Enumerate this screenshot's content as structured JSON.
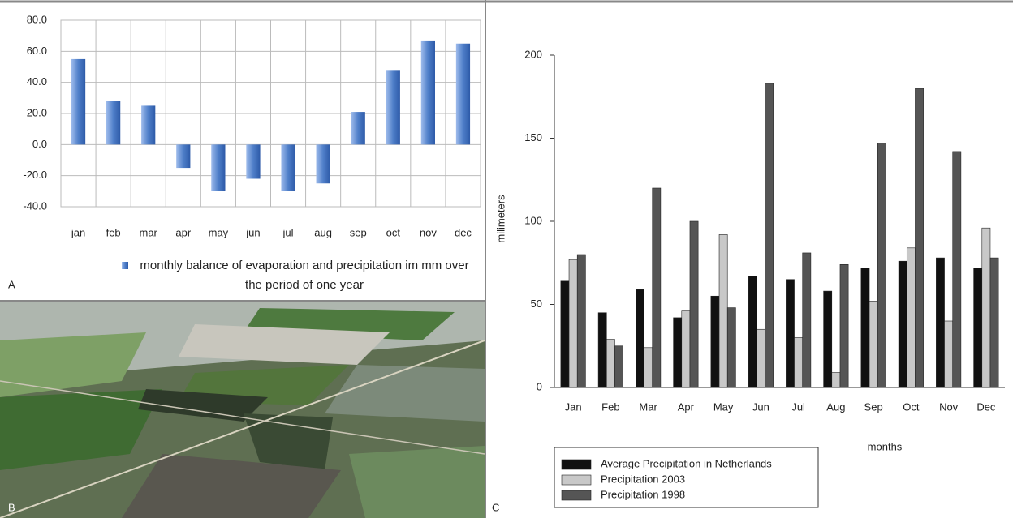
{
  "panel_labels": [
    "A",
    "B",
    "C"
  ],
  "chart_data": [
    {
      "type": "bar",
      "categories": [
        "jan",
        "feb",
        "mar",
        "apr",
        "may",
        "jun",
        "jul",
        "aug",
        "sep",
        "oct",
        "nov",
        "dec"
      ],
      "series": [
        {
          "name": "monthly balance of evaporation and precipitation im mm over the period of one year",
          "color": "#4f7fc9",
          "values": [
            55,
            28,
            25,
            -15,
            -30,
            -22,
            -30,
            -25,
            21,
            48,
            67,
            65
          ]
        }
      ],
      "ylim": [
        -40,
        80
      ],
      "yticks": [
        {
          "value": -40,
          "label": "-40.0"
        },
        {
          "value": -20,
          "label": "-20.0"
        },
        {
          "value": 0,
          "label": "0.0"
        },
        {
          "value": 20,
          "label": "20.0"
        },
        {
          "value": 40,
          "label": "40.0"
        },
        {
          "value": 60,
          "label": "60.0"
        },
        {
          "value": 80,
          "label": "80.0"
        }
      ],
      "grid": true
    },
    {
      "type": "bar",
      "categories": [
        "Jan",
        "Feb",
        "Mar",
        "Apr",
        "May",
        "Jun",
        "Jul",
        "Aug",
        "Sep",
        "Oct",
        "Nov",
        "Dec"
      ],
      "series": [
        {
          "name": "Average Precipitation in Netherlands",
          "color": "#111111",
          "values": [
            64,
            45,
            59,
            42,
            55,
            67,
            65,
            58,
            72,
            76,
            78,
            72
          ]
        },
        {
          "name": "Precipitation 2003",
          "color": "#c8c8c8",
          "values": [
            77,
            29,
            24,
            46,
            92,
            35,
            30,
            9,
            52,
            84,
            40,
            96
          ]
        },
        {
          "name": "Precipitation 1998",
          "color": "#555555",
          "values": [
            80,
            25,
            120,
            100,
            48,
            183,
            81,
            74,
            147,
            180,
            142,
            78
          ]
        }
      ],
      "ylim": [
        0,
        200
      ],
      "yticks": [
        0,
        50,
        100,
        150,
        200
      ],
      "ylabel": "milimeters",
      "xlabel": "months",
      "grid": false
    }
  ]
}
